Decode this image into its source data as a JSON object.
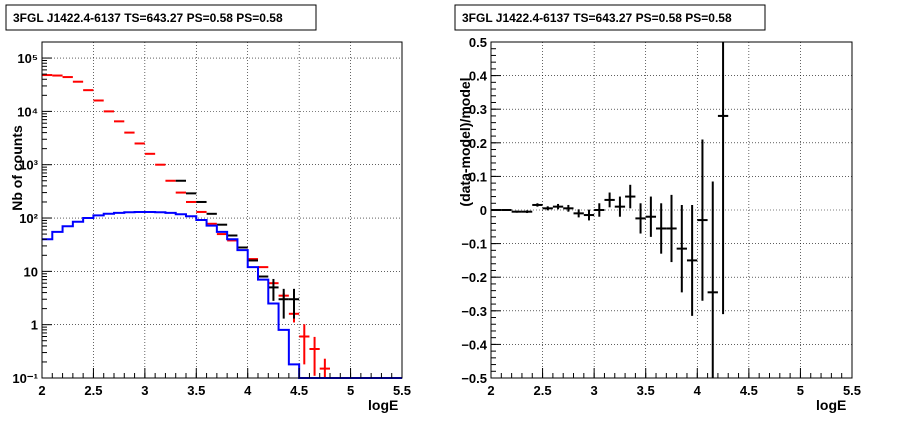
{
  "chart_data": [
    {
      "type": "histogram",
      "title": "3FGL J1422.4-6137 TS=643.27 PS=0.58 PS=0.58",
      "xlabel": "logE",
      "ylabel": "Nb of counts",
      "xlim": [
        2,
        5.5
      ],
      "ylim": [
        0.1,
        200000
      ],
      "yscale": "log",
      "grid": true,
      "x_ticks": [
        "2",
        "2.5",
        "3",
        "3.5",
        "4",
        "4.5",
        "5",
        "5.5"
      ],
      "y_ticks": [
        "10⁻¹",
        "1",
        "10",
        "10²",
        "10³",
        "10⁴",
        "10⁵"
      ],
      "series": [
        {
          "color": "#ff0000",
          "style": "errorbar",
          "x": [
            2.05,
            2.15,
            2.25,
            2.35,
            2.45,
            2.55,
            2.65,
            2.75,
            2.85,
            2.95,
            3.05,
            3.15,
            3.25,
            3.35,
            3.45,
            3.55,
            3.65,
            3.75,
            3.85,
            3.95,
            4.05,
            4.15,
            4.25,
            4.35,
            4.45,
            4.55,
            4.65,
            4.75
          ],
          "y": [
            48000,
            47000,
            44000,
            36000,
            25000,
            16000,
            10000,
            6500,
            4000,
            2500,
            1600,
            1000,
            500,
            300,
            200,
            130,
            78,
            50,
            38,
            28,
            17,
            12,
            6,
            3.5,
            1.6,
            0.6,
            0.35,
            0.15
          ],
          "yerr": [
            0,
            0,
            0,
            0,
            0,
            0,
            0,
            0,
            0,
            0,
            0,
            0,
            0,
            0,
            0,
            0,
            0,
            0,
            0,
            0,
            0,
            0,
            0.25,
            0.4,
            0.5,
            0.42,
            0.24,
            0.08
          ],
          "xerr": 0.05
        },
        {
          "color": "#000000",
          "style": "errorbar",
          "x": [
            3.35,
            3.45,
            3.55,
            3.65,
            3.75,
            3.85,
            3.95,
            4.05,
            4.15,
            4.25,
            4.35,
            4.45
          ],
          "y": [
            500,
            290,
            200,
            120,
            75,
            47,
            28,
            16,
            8,
            5,
            3,
            3
          ],
          "yerr": [
            0,
            0,
            0,
            0,
            0,
            0,
            0,
            0,
            0,
            2.2,
            1.7,
            1.7
          ],
          "xerr": 0.05
        },
        {
          "color": "#0000ff",
          "style": "step",
          "edges": [
            2.0,
            2.1,
            2.2,
            2.3,
            2.4,
            2.5,
            2.6,
            2.7,
            2.8,
            2.9,
            3.0,
            3.1,
            3.2,
            3.3,
            3.4,
            3.5,
            3.6,
            3.7,
            3.8,
            3.9,
            4.0,
            4.1,
            4.2,
            4.3,
            4.4,
            4.5,
            4.6,
            4.7,
            4.8,
            4.9,
            5.0,
            5.1,
            5.2,
            5.3,
            5.4,
            5.5
          ],
          "values": [
            40,
            55,
            70,
            85,
            100,
            112,
            120,
            125,
            128,
            130,
            130,
            128,
            125,
            118,
            108,
            92,
            72,
            55,
            40,
            25,
            12,
            7,
            2.5,
            0.8,
            0.18,
            0.1,
            0.1,
            0.1,
            0.1,
            0.1,
            0.1,
            0.1,
            0.1,
            0.1,
            0.1
          ]
        }
      ]
    },
    {
      "type": "errorbar",
      "title": "3FGL J1422.4-6137 TS=643.27 PS=0.58 PS=0.58",
      "xlabel": "logE",
      "ylabel": "(data-model)/model",
      "xlim": [
        2,
        5.5
      ],
      "ylim": [
        -0.5,
        0.5
      ],
      "grid": true,
      "x_ticks": [
        "2",
        "2.5",
        "3",
        "3.5",
        "4",
        "4.5",
        "5",
        "5.5"
      ],
      "y_ticks": [
        "−0.5",
        "−0.4",
        "−0.3",
        "−0.2",
        "−0.1",
        "0",
        "0.1",
        "0.2",
        "0.3",
        "0.4",
        "0.5"
      ],
      "series": [
        {
          "color": "#000000",
          "x": [
            2.05,
            2.15,
            2.25,
            2.35,
            2.45,
            2.55,
            2.65,
            2.75,
            2.85,
            2.95,
            3.05,
            3.15,
            3.25,
            3.35,
            3.45,
            3.55,
            3.65,
            3.75,
            3.85,
            3.95,
            4.05,
            4.15,
            4.25
          ],
          "y": [
            0.0,
            0.0,
            -0.005,
            -0.005,
            0.015,
            0.005,
            0.01,
            0.005,
            -0.01,
            -0.015,
            0.0,
            0.03,
            0.01,
            0.04,
            -0.025,
            -0.02,
            -0.055,
            -0.055,
            -0.115,
            -0.15,
            -0.03,
            -0.245,
            0.28
          ],
          "yerr": [
            0.002,
            0.002,
            0.003,
            0.004,
            0.005,
            0.006,
            0.008,
            0.01,
            0.012,
            0.016,
            0.02,
            0.022,
            0.03,
            0.035,
            0.045,
            0.06,
            0.075,
            0.1,
            0.13,
            0.165,
            0.24,
            0.33,
            0.59
          ],
          "xerr": 0.05
        }
      ]
    }
  ]
}
